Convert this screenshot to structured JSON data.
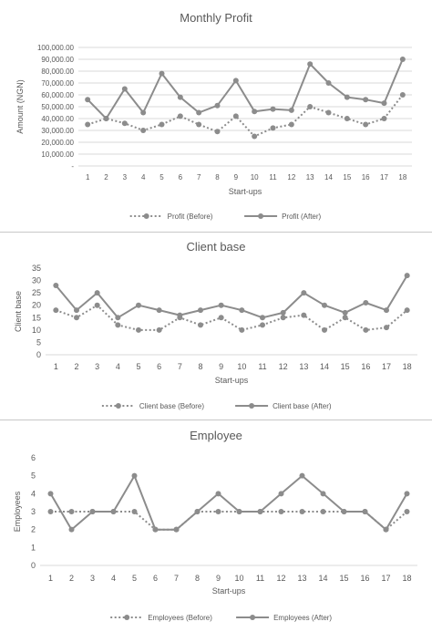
{
  "colors": {
    "series": "#8c8c8c",
    "grid": "#d9d9d9",
    "text": "#595959"
  },
  "chart_data": [
    {
      "type": "line",
      "title": "Monthly Profit",
      "xlabel": "Start-ups",
      "ylabel": "Amount (NGN)",
      "categories": [
        "1",
        "2",
        "3",
        "4",
        "5",
        "6",
        "7",
        "8",
        "9",
        "10",
        "11",
        "12",
        "13",
        "14",
        "15",
        "16",
        "17",
        "18"
      ],
      "ylim": [
        0,
        100000
      ],
      "yticks": [
        0,
        10000,
        20000,
        30000,
        40000,
        50000,
        60000,
        70000,
        80000,
        90000,
        100000
      ],
      "ytick_labels": [
        "-",
        "10,000.00",
        "20,000.00",
        "30,000.00",
        "40,000.00",
        "50,000.00",
        "60,000.00",
        "70,000.00",
        "80,000.00",
        "90,000.00",
        "100,000.00"
      ],
      "grid": true,
      "legend": "bottom",
      "series": [
        {
          "name": "Profit (Before)",
          "style": "dotted",
          "values": [
            35000,
            40000,
            36000,
            30000,
            35000,
            42000,
            35000,
            29000,
            42000,
            25000,
            32000,
            35000,
            50000,
            45000,
            40000,
            35000,
            40000,
            60000
          ]
        },
        {
          "name": "Profit (After)",
          "style": "solid",
          "values": [
            56000,
            40000,
            65000,
            45000,
            78000,
            58000,
            45000,
            51000,
            72000,
            46000,
            48000,
            47000,
            86000,
            70000,
            58000,
            56000,
            53000,
            90000
          ]
        }
      ]
    },
    {
      "type": "line",
      "title": "Client base",
      "xlabel": "Start-ups",
      "ylabel": "Client base",
      "categories": [
        "1",
        "2",
        "3",
        "4",
        "5",
        "6",
        "7",
        "8",
        "9",
        "10",
        "11",
        "12",
        "13",
        "14",
        "15",
        "16",
        "17",
        "18"
      ],
      "ylim": [
        0,
        35
      ],
      "yticks": [
        0,
        5,
        10,
        15,
        20,
        25,
        30,
        35
      ],
      "ytick_labels": [
        "0",
        "5",
        "10",
        "15",
        "20",
        "25",
        "30",
        "35"
      ],
      "grid": false,
      "legend": "bottom",
      "series": [
        {
          "name": "Client base (Before)",
          "style": "dotted",
          "values": [
            18,
            15,
            20,
            12,
            10,
            10,
            15,
            12,
            15,
            10,
            12,
            15,
            16,
            10,
            15,
            10,
            11,
            18
          ]
        },
        {
          "name": "Client base (After)",
          "style": "solid",
          "values": [
            28,
            18,
            25,
            15,
            20,
            18,
            16,
            18,
            20,
            18,
            15,
            17,
            25,
            20,
            17,
            21,
            18,
            32
          ]
        }
      ]
    },
    {
      "type": "line",
      "title": "Employee",
      "xlabel": "Start-ups",
      "ylabel": "Employees",
      "categories": [
        "1",
        "2",
        "3",
        "4",
        "5",
        "6",
        "7",
        "8",
        "9",
        "10",
        "11",
        "12",
        "13",
        "14",
        "15",
        "16",
        "17",
        "18"
      ],
      "ylim": [
        0,
        6
      ],
      "yticks": [
        0,
        1,
        2,
        3,
        4,
        5,
        6
      ],
      "ytick_labels": [
        "0",
        "1",
        "2",
        "3",
        "4",
        "5",
        "6"
      ],
      "grid": false,
      "legend": "bottom",
      "series": [
        {
          "name": "Employees (Before)",
          "style": "dotted",
          "values": [
            3,
            3,
            3,
            3,
            3,
            2,
            2,
            3,
            3,
            3,
            3,
            3,
            3,
            3,
            3,
            3,
            2,
            3
          ]
        },
        {
          "name": "Employees (After)",
          "style": "solid",
          "values": [
            4,
            2,
            3,
            3,
            5,
            2,
            2,
            3,
            4,
            3,
            3,
            4,
            5,
            4,
            3,
            3,
            2,
            4
          ]
        }
      ]
    }
  ]
}
